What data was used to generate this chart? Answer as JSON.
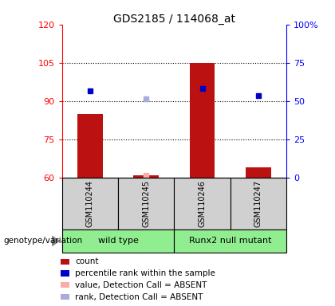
{
  "title": "GDS2185 / 114068_at",
  "samples": [
    "GSM110244",
    "GSM110245",
    "GSM110246",
    "GSM110247"
  ],
  "bar_values": [
    85,
    61,
    105,
    64
  ],
  "rank_values": [
    94,
    null,
    95,
    92
  ],
  "absent_value": [
    null,
    61,
    null,
    null
  ],
  "absent_rank": [
    null,
    91,
    null,
    null
  ],
  "ylim_left": [
    60,
    120
  ],
  "ylim_right": [
    0,
    100
  ],
  "yticks_left": [
    60,
    75,
    90,
    105,
    120
  ],
  "yticks_right": [
    0,
    25,
    50,
    75,
    100
  ],
  "ytick_labels_right": [
    "0",
    "25",
    "50",
    "75",
    "100%"
  ],
  "bar_bottom": 60,
  "bar_color": "#bb1111",
  "rank_color": "#0000cc",
  "absent_val_color": "#ffaaaa",
  "absent_rank_color": "#aaaadd",
  "group1_name": "wild type",
  "group2_name": "Runx2 null mutant",
  "group_color": "#90EE90",
  "sample_bg_color": "#d0d0d0",
  "legend_items": [
    {
      "color": "#bb1111",
      "label": "count"
    },
    {
      "color": "#0000cc",
      "label": "percentile rank within the sample"
    },
    {
      "color": "#ffaaaa",
      "label": "value, Detection Call = ABSENT"
    },
    {
      "color": "#aaaadd",
      "label": "rank, Detection Call = ABSENT"
    }
  ]
}
